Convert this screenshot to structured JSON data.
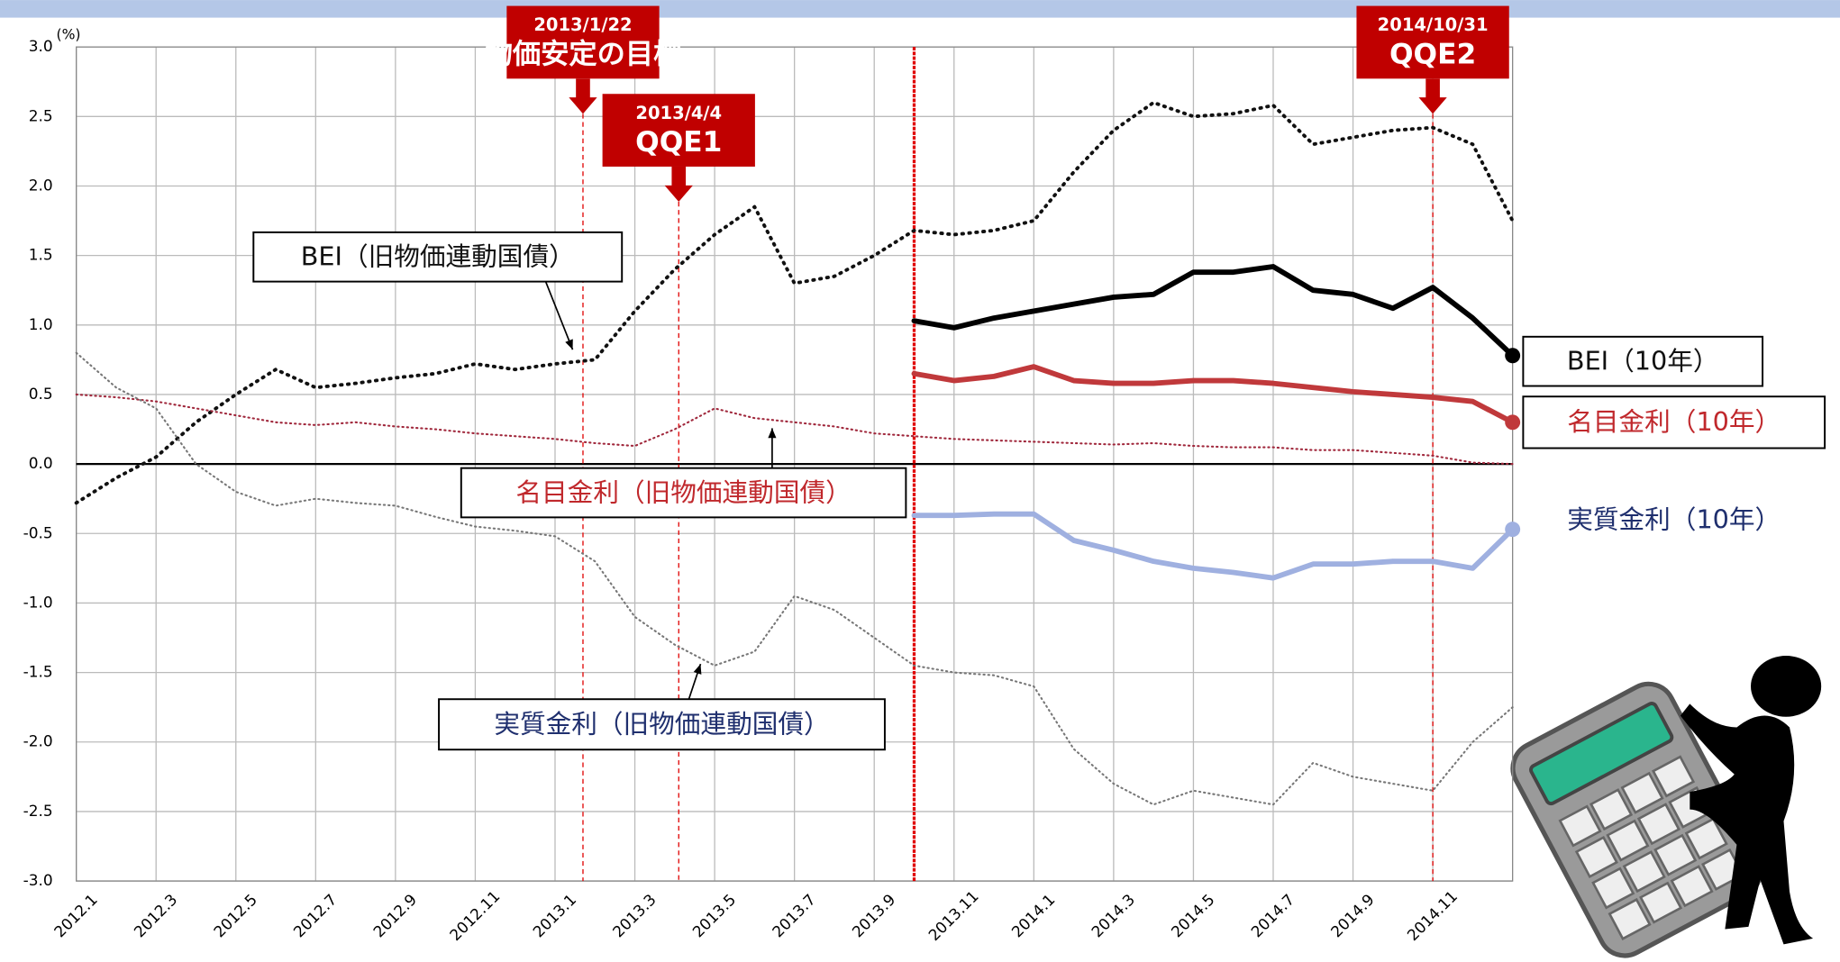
{
  "chart_data": {
    "type": "line",
    "unit_label": "(%)",
    "categories": [
      "2012.1",
      null,
      "2012.3",
      null,
      "2012.5",
      null,
      "2012.7",
      null,
      "2012.9",
      null,
      "2012.11",
      null,
      "2013.1",
      null,
      "2013.3",
      null,
      "2013.5",
      null,
      "2013.7",
      null,
      "2013.9",
      null,
      "2013.11",
      null,
      "2014.1",
      null,
      "2014.3",
      null,
      "2014.5",
      null,
      "2014.7",
      null,
      "2014.9",
      null,
      "2014.11",
      null,
      null
    ],
    "ylim": [
      -3,
      3
    ],
    "yticks": [
      {
        "value": 3,
        "label": "3.0"
      },
      2.5,
      {
        "value": 2,
        "label": "2.0"
      },
      1.5,
      {
        "value": 1,
        "label": "1.0"
      },
      0.5,
      {
        "value": 0,
        "label": "0.0"
      },
      -0.5,
      {
        "value": -1,
        "label": "-1.0"
      },
      -1.5,
      {
        "value": -2,
        "label": "-2.0"
      },
      -2.5,
      {
        "value": -3,
        "label": "-3.0"
      }
    ],
    "grid": true,
    "series": [
      {
        "name": "BEI（旧物価連動国債）",
        "color": "#111111",
        "label_color": "#111111",
        "dotted": true,
        "width": 3,
        "values": [
          -0.28,
          -0.1,
          0.05,
          0.3,
          0.5,
          0.68,
          0.55,
          0.58,
          0.62,
          0.65,
          0.72,
          0.68,
          0.72,
          0.75,
          1.1,
          1.4,
          1.65,
          1.85,
          1.3,
          1.35,
          1.5,
          1.68,
          1.65,
          1.68,
          1.75,
          2.1,
          2.4,
          2.6,
          2.5,
          2.52,
          2.58,
          2.3,
          2.35,
          2.4,
          2.42,
          2.3,
          1.75
        ]
      },
      {
        "name": "名目金利（旧物価連動国債）",
        "color": "#a0283c",
        "label_color": "#c0282c",
        "dotted": true,
        "width": 1.6,
        "values": [
          0.5,
          0.48,
          0.45,
          0.4,
          0.35,
          0.3,
          0.28,
          0.3,
          0.27,
          0.25,
          0.22,
          0.2,
          0.18,
          0.15,
          0.13,
          0.25,
          0.4,
          0.33,
          0.3,
          0.27,
          0.22,
          0.2,
          0.18,
          0.17,
          0.16,
          0.15,
          0.14,
          0.15,
          0.13,
          0.12,
          0.12,
          0.1,
          0.1,
          0.08,
          0.06,
          0.01,
          0
        ]
      },
      {
        "name": "実質金利（旧物価連動国債）",
        "color": "#777777",
        "label_color": "#1f2f6e",
        "dotted": true,
        "width": 1.6,
        "values": [
          0.8,
          0.55,
          0.4,
          0,
          -0.2,
          -0.3,
          -0.25,
          -0.28,
          -0.3,
          -0.38,
          -0.45,
          -0.48,
          -0.52,
          -0.7,
          -1.1,
          -1.3,
          -1.45,
          -1.35,
          -0.95,
          -1.05,
          -1.25,
          -1.45,
          -1.5,
          -1.52,
          -1.6,
          -2.05,
          -2.3,
          -2.45,
          -2.35,
          -2.4,
          -2.45,
          -2.15,
          -2.25,
          -2.3,
          -2.35,
          -2,
          -1.75
        ]
      },
      {
        "name": "BEI（10年）",
        "color": "#000000",
        "label_color": "#111111",
        "dotted": false,
        "width": 4.5,
        "values": [
          null,
          null,
          null,
          null,
          null,
          null,
          null,
          null,
          null,
          null,
          null,
          null,
          null,
          null,
          null,
          null,
          null,
          null,
          null,
          null,
          null,
          1.03,
          0.98,
          1.05,
          1.1,
          1.15,
          1.2,
          1.22,
          1.38,
          1.38,
          1.42,
          1.25,
          1.22,
          1.12,
          1.27,
          1.05,
          0.78
        ]
      },
      {
        "name": "名目金利（10年）",
        "color": "#c0393b",
        "label_color": "#c0282c",
        "dotted": false,
        "width": 4.5,
        "values": [
          null,
          null,
          null,
          null,
          null,
          null,
          null,
          null,
          null,
          null,
          null,
          null,
          null,
          null,
          null,
          null,
          null,
          null,
          null,
          null,
          null,
          0.65,
          0.6,
          0.63,
          0.7,
          0.6,
          0.58,
          0.58,
          0.6,
          0.6,
          0.58,
          0.55,
          0.52,
          0.5,
          0.48,
          0.45,
          0.3
        ]
      },
      {
        "name": "実質金利（10年）",
        "color": "#9fb0e0",
        "label_color": "#1f2f6e",
        "dotted": false,
        "width": 4.5,
        "values": [
          null,
          null,
          null,
          null,
          null,
          null,
          null,
          null,
          null,
          null,
          null,
          null,
          null,
          null,
          null,
          null,
          null,
          null,
          null,
          null,
          null,
          -0.37,
          -0.37,
          -0.36,
          -0.36,
          -0.55,
          -0.62,
          -0.7,
          -0.75,
          -0.78,
          -0.82,
          -0.72,
          -0.72,
          -0.7,
          -0.7,
          -0.75,
          -0.47
        ]
      }
    ],
    "events": [
      {
        "date": "2013/1/22",
        "label": "物価安定の目標"
      },
      {
        "date": "2013/4/4",
        "label": "QQE1"
      },
      {
        "date": "2014/10/31",
        "label": "QQE2"
      }
    ]
  }
}
